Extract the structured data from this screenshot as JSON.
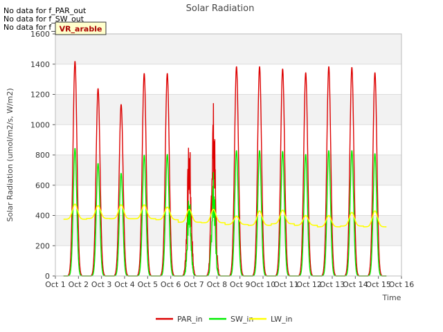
{
  "chart_data": {
    "type": "line",
    "title": "Solar Radiation",
    "xlabel": "Time",
    "ylabel": "Solar Radiation (umol/m2/s, W/m2)",
    "ylim": [
      0,
      1600
    ],
    "yticks": [
      0,
      200,
      400,
      600,
      800,
      1000,
      1200,
      1400,
      1600
    ],
    "xlim": [
      1,
      16
    ],
    "xtick_labels": [
      "Oct 1",
      "Oct 2",
      "Oct 3",
      "Oct 4",
      "Oct 5",
      "Oct 6",
      "Oct 7",
      "Oct 8",
      "Oct 9",
      "Oct 10",
      "Oct 11",
      "Oct 12",
      "Oct 13",
      "Oct 14",
      "Oct 15",
      "Oct 16"
    ],
    "grid": true,
    "legend_position": "bottom-center",
    "no_data_messages": [
      "No data for f_PAR_out",
      "No data for f_SW_out",
      "No data for f_LW_out"
    ],
    "site_label": "VR_arable",
    "series": [
      {
        "name": "PAR_in",
        "color": "#dd0000",
        "daily_peaks": [
          1420,
          1240,
          1135,
          1340,
          1340,
          920,
          1165,
          1385,
          1385,
          1370,
          1345,
          1385,
          1380,
          1345
        ]
      },
      {
        "name": "SW_in",
        "color": "#00ee00",
        "daily_peaks": [
          845,
          745,
          680,
          800,
          805,
          550,
          700,
          830,
          830,
          825,
          805,
          830,
          830,
          810
        ]
      },
      {
        "name": "LW_in",
        "color": "#ffff00",
        "baseline": [
          375,
          380,
          378,
          378,
          372,
          355,
          352,
          340,
          335,
          345,
          335,
          325,
          330,
          325
        ],
        "peaks": [
          475,
          465,
          470,
          470,
          455,
          440,
          440,
          395,
          430,
          435,
          400,
          400,
          420,
          430
        ]
      }
    ],
    "day_centers": [
      1.85,
      2.85,
      3.85,
      4.85,
      5.85,
      6.8,
      7.85,
      8.85,
      9.85,
      10.85,
      11.85,
      12.85,
      13.85,
      14.85
    ],
    "data_range": [
      1.35,
      15.35
    ]
  }
}
